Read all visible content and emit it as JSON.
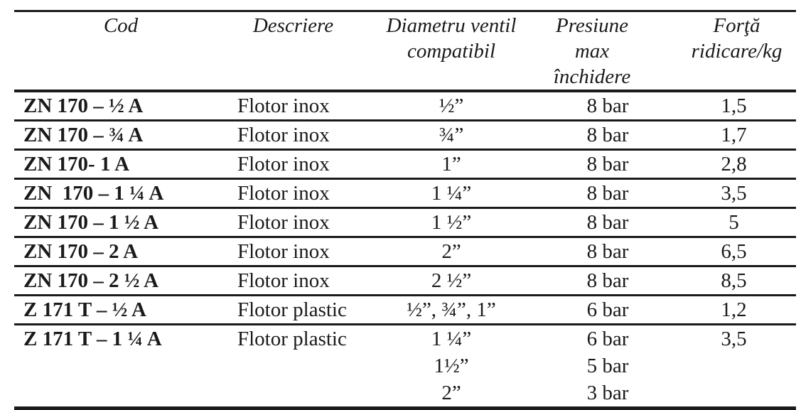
{
  "table": {
    "columns": [
      {
        "line1": "Cod",
        "line2": ""
      },
      {
        "line1": "Descriere",
        "line2": ""
      },
      {
        "line1": "Diametru ventil",
        "line2": "compatibil"
      },
      {
        "line1": "Presiune max",
        "line2": "închidere"
      },
      {
        "line1": "Forţă",
        "line2": "ridicare/kg"
      }
    ],
    "rows": [
      {
        "cod": "ZN 170 – ½ A",
        "descriere": "Flotor inox",
        "diametru": [
          "½”"
        ],
        "presiune": [
          "8 bar"
        ],
        "forta": [
          "1,5"
        ]
      },
      {
        "cod": "ZN 170 – ¾ A",
        "descriere": "Flotor inox",
        "diametru": [
          "¾”"
        ],
        "presiune": [
          "8 bar"
        ],
        "forta": [
          "1,7"
        ]
      },
      {
        "cod": "ZN 170- 1 A",
        "descriere": "Flotor inox",
        "diametru": [
          "1”"
        ],
        "presiune": [
          "8 bar"
        ],
        "forta": [
          "2,8"
        ]
      },
      {
        "cod": "ZN  170 – 1 ¼ A",
        "descriere": "Flotor inox",
        "diametru": [
          "1 ¼”"
        ],
        "presiune": [
          "8 bar"
        ],
        "forta": [
          "3,5"
        ]
      },
      {
        "cod": "ZN 170 – 1 ½ A",
        "descriere": "Flotor inox",
        "diametru": [
          "1 ½”"
        ],
        "presiune": [
          "8 bar"
        ],
        "forta": [
          "5"
        ]
      },
      {
        "cod": "ZN 170 – 2 A",
        "descriere": "Flotor inox",
        "diametru": [
          "2”"
        ],
        "presiune": [
          "8 bar"
        ],
        "forta": [
          "6,5"
        ]
      },
      {
        "cod": "ZN 170 – 2 ½ A",
        "descriere": "Flotor inox",
        "diametru": [
          "2 ½”"
        ],
        "presiune": [
          "8 bar"
        ],
        "forta": [
          "8,5"
        ]
      },
      {
        "cod": "Z 171 T – ½ A",
        "descriere": "Flotor plastic",
        "diametru": [
          "½”, ¾”, 1”"
        ],
        "presiune": [
          "6 bar"
        ],
        "forta": [
          "1,2"
        ]
      },
      {
        "cod": "Z 171 T – 1 ¼ A",
        "descriere": "Flotor plastic",
        "diametru": [
          "1 ¼”",
          "1½”",
          "2”"
        ],
        "presiune": [
          "6 bar",
          "5 bar",
          "3 bar"
        ],
        "forta": [
          "3,5"
        ]
      }
    ],
    "colors": {
      "text": "#1a1a1a",
      "rule": "#1a1a1a",
      "background": "#ffffff"
    }
  }
}
